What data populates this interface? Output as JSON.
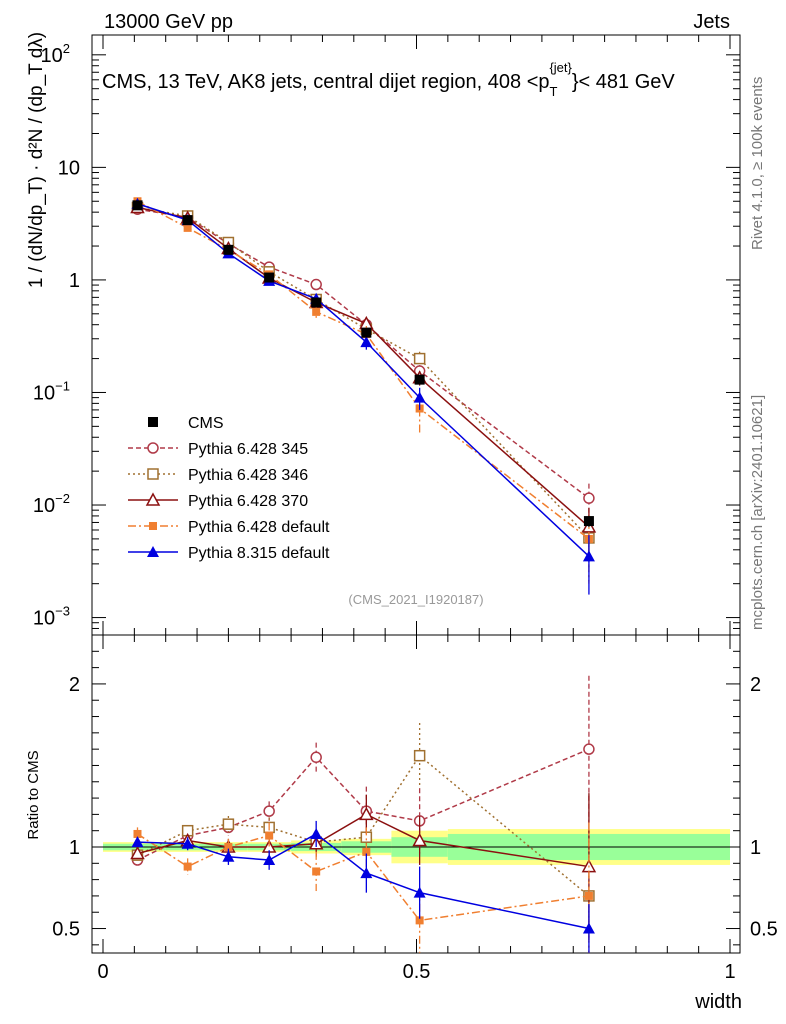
{
  "header": {
    "left": "13000 GeV pp",
    "right": "Jets"
  },
  "title": {
    "main": "CMS, 13 TeV, AK8 jets, central dijet region, 408 <p",
    "sub": "T",
    "sup": "{jet}",
    "tail": "}< 481 GeV"
  },
  "side_labels": {
    "rivet": "Rivet 4.1.0, ≥ 100k events",
    "mcplots": "mcplots.cern.ch [arXiv:2401.10621]"
  },
  "analysis_id": "(CMS_2021_I1920187)",
  "axis_titles": {
    "y_main": "1 / (dN/dp_T) · d²N / (dp_T dλ)",
    "y_ratio": "Ratio to CMS",
    "x": "width"
  },
  "chart_data": [
    {
      "type": "line",
      "panel": "main",
      "yscale": "log",
      "xlim": [
        0,
        1
      ],
      "ylim": [
        0.0007,
        150
      ],
      "x_ticks": [],
      "y_ticks": [
        {
          "v": 0.001,
          "base": "10",
          "exp": "−3"
        },
        {
          "v": 0.01,
          "base": "10",
          "exp": "−2"
        },
        {
          "v": 0.1,
          "base": "10",
          "exp": "−1"
        },
        {
          "v": 1,
          "base": "1",
          "exp": ""
        },
        {
          "v": 10,
          "base": "10",
          "exp": ""
        },
        {
          "v": 100,
          "base": "10",
          "exp": "2"
        }
      ],
      "x": [
        0.055,
        0.135,
        0.2,
        0.265,
        0.34,
        0.42,
        0.505,
        0.775
      ],
      "data": {
        "name": "CMS",
        "values": [
          4.6,
          3.4,
          1.85,
          1.05,
          0.63,
          0.34,
          0.13,
          0.0072
        ],
        "errors": [
          0.15,
          0.1,
          0.06,
          0.04,
          0.03,
          0.02,
          0.01,
          0.0008
        ]
      },
      "series": [
        {
          "name": "Pythia 6.428 345",
          "color": "#b03a48",
          "dash": "5,3",
          "marker": "circle-open",
          "values": [
            4.25,
            3.6,
            2.1,
            1.3,
            0.91,
            0.4,
            0.155,
            0.0115
          ],
          "errors": [
            0.1,
            0.1,
            0.07,
            0.06,
            0.05,
            0.04,
            0.02,
            0.004
          ]
        },
        {
          "name": "Pythia 6.428 346",
          "color": "#a07030",
          "dash": "2,3",
          "marker": "square-open",
          "values": [
            4.4,
            3.7,
            2.15,
            1.18,
            0.67,
            0.365,
            0.2,
            0.0051
          ],
          "errors": [
            0.1,
            0.1,
            0.07,
            0.06,
            0.05,
            0.04,
            0.03,
            0.003
          ]
        },
        {
          "name": "Pythia 6.428 370",
          "color": "#8b1010",
          "dash": "",
          "marker": "triangle-open",
          "values": [
            4.4,
            3.55,
            1.9,
            1.04,
            0.63,
            0.41,
            0.135,
            0.0064
          ],
          "errors": [
            0.1,
            0.1,
            0.07,
            0.06,
            0.05,
            0.04,
            0.02,
            0.003
          ]
        },
        {
          "name": "Pythia 6.428 default",
          "color": "#f07f30",
          "dash": "8,3,2,3",
          "marker": "square-filled",
          "values": [
            5.0,
            2.9,
            1.85,
            1.12,
            0.52,
            0.33,
            0.072,
            0.005
          ],
          "errors": [
            0.2,
            0.15,
            0.08,
            0.08,
            0.08,
            0.06,
            0.028,
            0.003
          ]
        },
        {
          "name": "Pythia 8.315 default",
          "color": "#0000e0",
          "dash": "",
          "marker": "triangle-filled",
          "values": [
            4.75,
            3.4,
            1.72,
            0.98,
            0.68,
            0.28,
            0.09,
            0.0035
          ],
          "errors": [
            0.15,
            0.1,
            0.07,
            0.06,
            0.05,
            0.04,
            0.02,
            0.0019
          ]
        }
      ]
    },
    {
      "type": "line",
      "panel": "ratio",
      "xlim": [
        0,
        1
      ],
      "ylim": [
        0.35,
        2.3
      ],
      "x_ticks": [
        {
          "v": 0,
          "label": "0"
        },
        {
          "v": 0.5,
          "label": "0.5"
        },
        {
          "v": 1,
          "label": "1"
        }
      ],
      "y_ticks": [
        {
          "v": 0.5,
          "label": "0.5"
        },
        {
          "v": 1,
          "label": "1"
        },
        {
          "v": 2,
          "label": "2"
        }
      ],
      "bands": [
        {
          "x": [
            0.0,
            0.1,
            0.17,
            0.23,
            0.3,
            0.38,
            0.46,
            0.55,
            1.0
          ],
          "inner": [
            0.02,
            0.02,
            0.02,
            0.02,
            0.025,
            0.035,
            0.06,
            0.08
          ],
          "outer": [
            0.03,
            0.03,
            0.03,
            0.03,
            0.04,
            0.05,
            0.1,
            0.11
          ]
        }
      ],
      "x": [
        0.055,
        0.135,
        0.2,
        0.265,
        0.34,
        0.42,
        0.505,
        0.775
      ],
      "series": [
        {
          "name": "Pythia 6.428 345",
          "values": [
            0.92,
            1.07,
            1.12,
            1.22,
            1.55,
            1.22,
            1.16,
            1.6
          ],
          "errors": [
            0.03,
            0.03,
            0.05,
            0.06,
            0.09,
            0.15,
            0.2,
            0.45
          ]
        },
        {
          "name": "Pythia 6.428 346",
          "values": [
            0.95,
            1.1,
            1.14,
            1.12,
            1.03,
            1.06,
            1.56,
            0.7
          ],
          "errors": [
            0.03,
            0.03,
            0.05,
            0.06,
            0.08,
            0.12,
            0.2,
            0.4
          ]
        },
        {
          "name": "Pythia 6.428 370",
          "values": [
            0.96,
            1.04,
            1.0,
            1.0,
            1.02,
            1.2,
            1.04,
            0.88
          ],
          "errors": [
            0.03,
            0.03,
            0.05,
            0.06,
            0.08,
            0.12,
            0.15,
            0.45
          ]
        },
        {
          "name": "Pythia 6.428 default",
          "values": [
            1.08,
            0.88,
            1.0,
            1.07,
            0.85,
            0.97,
            0.55,
            0.7
          ],
          "errors": [
            0.04,
            0.05,
            0.05,
            0.08,
            0.12,
            0.15,
            0.2,
            0.45
          ]
        },
        {
          "name": "Pythia 8.315 default",
          "values": [
            1.03,
            1.02,
            0.94,
            0.92,
            1.08,
            0.84,
            0.72,
            0.5
          ],
          "errors": [
            0.03,
            0.04,
            0.05,
            0.06,
            0.08,
            0.12,
            0.16,
            0.15
          ]
        }
      ]
    }
  ]
}
